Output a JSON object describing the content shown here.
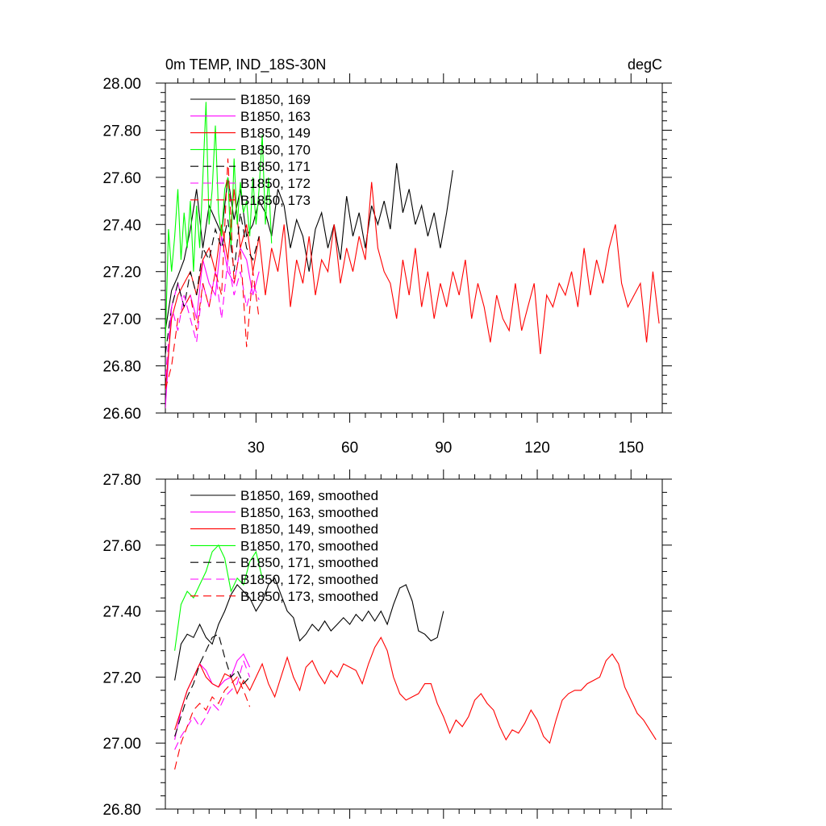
{
  "chart_data": [
    {
      "type": "line",
      "title": "0m TEMP, IND_18S-30N",
      "units": "degC",
      "xlim": [
        1,
        160
      ],
      "ylim": [
        26.6,
        28.0
      ],
      "xticks": [
        30,
        60,
        90,
        120,
        150
      ],
      "ytick_labels": [
        "26.60",
        "26.80",
        "27.00",
        "27.20",
        "27.40",
        "27.60",
        "27.80",
        "28.00"
      ],
      "legend_position": "top-left",
      "series": [
        {
          "name": "B1850, 169",
          "color": "#000000",
          "dash": "solid",
          "x": [
            1,
            3,
            5,
            7,
            9,
            11,
            13,
            15,
            17,
            19,
            21,
            23,
            25,
            27,
            29,
            31,
            33,
            35,
            37,
            39,
            41,
            43,
            45,
            47,
            49,
            51,
            53,
            55,
            57,
            59,
            61,
            63,
            65,
            67,
            69,
            71,
            73,
            75,
            77,
            79,
            81,
            83,
            85,
            87,
            89,
            91,
            93
          ],
          "y": [
            26.95,
            27.12,
            27.18,
            27.25,
            27.38,
            27.55,
            27.3,
            27.48,
            27.42,
            27.36,
            27.6,
            27.42,
            27.55,
            27.35,
            27.4,
            27.5,
            27.45,
            27.35,
            27.55,
            27.48,
            27.3,
            27.42,
            27.35,
            27.2,
            27.38,
            27.45,
            27.3,
            27.4,
            27.25,
            27.52,
            27.35,
            27.45,
            27.3,
            27.48,
            27.4,
            27.5,
            27.38,
            27.66,
            27.45,
            27.55,
            27.4,
            27.48,
            27.35,
            27.45,
            27.3,
            27.45,
            27.63
          ]
        },
        {
          "name": "B1850, 163",
          "color": "#ff00ff",
          "dash": "solid",
          "x": [
            1,
            3,
            5,
            7,
            9,
            11,
            13,
            15,
            17,
            19,
            21,
            23,
            25,
            27,
            29,
            31
          ],
          "y": [
            26.62,
            27.05,
            27.15,
            27.05,
            27.1,
            27.0,
            27.25,
            27.15,
            27.1,
            27.35,
            27.2,
            27.15,
            27.3,
            27.25,
            27.1,
            27.2
          ]
        },
        {
          "name": "B1850, 149",
          "color": "#ff0000",
          "dash": "solid",
          "x": [
            1,
            3,
            5,
            7,
            9,
            11,
            13,
            15,
            17,
            19,
            21,
            23,
            25,
            27,
            29,
            31,
            33,
            35,
            37,
            39,
            41,
            43,
            45,
            47,
            49,
            51,
            53,
            55,
            57,
            59,
            61,
            63,
            65,
            67,
            69,
            71,
            73,
            75,
            77,
            79,
            81,
            83,
            85,
            87,
            89,
            91,
            93,
            95,
            97,
            99,
            101,
            103,
            105,
            107,
            109,
            111,
            113,
            115,
            117,
            119,
            121,
            123,
            125,
            127,
            129,
            131,
            133,
            135,
            137,
            139,
            141,
            143,
            145,
            147,
            149,
            151,
            153,
            155,
            157,
            159
          ],
          "y": [
            26.7,
            27.0,
            27.1,
            27.15,
            27.2,
            27.1,
            27.25,
            27.3,
            27.2,
            27.4,
            27.25,
            27.55,
            27.3,
            27.4,
            27.2,
            27.35,
            27.1,
            27.3,
            27.2,
            27.4,
            27.05,
            27.25,
            27.15,
            27.35,
            27.1,
            27.25,
            27.2,
            27.4,
            27.15,
            27.3,
            27.2,
            27.35,
            27.25,
            27.58,
            27.3,
            27.2,
            27.15,
            27.0,
            27.25,
            27.1,
            27.3,
            27.05,
            27.2,
            27.0,
            27.15,
            27.05,
            27.2,
            27.1,
            27.25,
            27.0,
            27.15,
            27.05,
            26.9,
            27.1,
            27.0,
            26.95,
            27.15,
            26.95,
            27.05,
            27.15,
            26.85,
            27.1,
            27.05,
            27.15,
            27.1,
            27.2,
            27.05,
            27.3,
            27.1,
            27.25,
            27.15,
            27.3,
            27.4,
            27.15,
            27.05,
            27.1,
            27.15,
            26.9,
            27.2,
            26.98
          ]
        },
        {
          "name": "B1850, 170",
          "color": "#00ff00",
          "dash": "solid",
          "x": [
            1,
            2,
            3,
            4,
            5,
            6,
            7,
            8,
            9,
            10,
            11,
            12,
            13,
            14,
            15,
            16,
            17,
            18,
            19,
            20,
            21,
            22,
            23,
            24,
            25,
            26,
            27,
            28,
            29,
            30,
            31,
            32,
            33,
            34,
            35
          ],
          "y": [
            26.9,
            27.38,
            27.2,
            27.35,
            27.55,
            27.25,
            27.45,
            27.3,
            27.5,
            27.2,
            27.48,
            27.3,
            27.6,
            27.92,
            27.4,
            27.55,
            27.82,
            27.45,
            27.35,
            27.55,
            27.6,
            27.3,
            27.68,
            27.4,
            27.58,
            27.45,
            27.5,
            27.35,
            27.6,
            27.4,
            27.55,
            27.78,
            27.4,
            27.6,
            27.32
          ]
        },
        {
          "name": "B1850, 171",
          "color": "#000000",
          "dash": "dashed",
          "x": [
            1,
            3,
            5,
            7,
            9,
            11,
            13,
            15,
            17,
            19,
            21,
            23,
            25,
            27,
            29,
            31
          ],
          "y": [
            26.85,
            27.05,
            27.15,
            27.05,
            27.2,
            27.1,
            27.3,
            27.25,
            27.38,
            27.3,
            27.42,
            27.2,
            27.45,
            27.3,
            27.25,
            27.35
          ]
        },
        {
          "name": "B1850, 172",
          "color": "#ff00ff",
          "dash": "dashed",
          "x": [
            1,
            3,
            5,
            7,
            9,
            11,
            13,
            15,
            17,
            19,
            21,
            23,
            25,
            27,
            29,
            31
          ],
          "y": [
            26.75,
            27.05,
            26.95,
            27.1,
            27.0,
            26.9,
            27.15,
            27.05,
            27.2,
            27.0,
            27.25,
            27.1,
            27.2,
            27.05,
            27.15,
            27.08
          ]
        },
        {
          "name": "B1850, 173",
          "color": "#ff0000",
          "dash": "dashed",
          "x": [
            1,
            3,
            5,
            7,
            9,
            11,
            13,
            15,
            17,
            19,
            21,
            23,
            25,
            27,
            29,
            31
          ],
          "y": [
            26.7,
            26.8,
            27.0,
            27.05,
            27.1,
            26.95,
            27.15,
            27.05,
            27.2,
            27.1,
            27.68,
            27.15,
            27.3,
            26.88,
            27.2,
            27.0
          ]
        }
      ]
    },
    {
      "type": "line",
      "xlim": [
        1,
        160
      ],
      "ylim": [
        26.8,
        27.8
      ],
      "xticks": [
        30,
        60,
        90,
        120,
        150
      ],
      "ytick_labels": [
        "26.80",
        "27.00",
        "27.20",
        "27.40",
        "27.60",
        "27.80"
      ],
      "legend_position": "top-left",
      "series": [
        {
          "name": "B1850, 169, smoothed",
          "color": "#000000",
          "dash": "solid",
          "x": [
            4,
            6,
            8,
            10,
            12,
            14,
            16,
            18,
            20,
            22,
            24,
            26,
            28,
            30,
            32,
            34,
            36,
            38,
            40,
            42,
            44,
            46,
            48,
            50,
            52,
            54,
            56,
            58,
            60,
            62,
            64,
            66,
            68,
            70,
            72,
            74,
            76,
            78,
            80,
            82,
            84,
            86,
            88,
            90
          ],
          "y": [
            27.19,
            27.3,
            27.33,
            27.32,
            27.36,
            27.32,
            27.3,
            27.36,
            27.4,
            27.45,
            27.48,
            27.46,
            27.44,
            27.4,
            27.43,
            27.48,
            27.5,
            27.45,
            27.4,
            27.38,
            27.31,
            27.33,
            27.36,
            27.34,
            27.37,
            27.34,
            27.36,
            27.38,
            27.36,
            27.39,
            27.37,
            27.4,
            27.37,
            27.4,
            27.36,
            27.42,
            27.47,
            27.48,
            27.43,
            27.34,
            27.33,
            27.31,
            27.32,
            27.4
          ]
        },
        {
          "name": "B1850, 163, smoothed",
          "color": "#ff00ff",
          "dash": "solid",
          "x": [
            4,
            6,
            8,
            10,
            12,
            14,
            16,
            18,
            20,
            22,
            24,
            26,
            28
          ],
          "y": [
            27.01,
            27.1,
            27.16,
            27.2,
            27.24,
            27.22,
            27.18,
            27.17,
            27.19,
            27.2,
            27.25,
            27.27,
            27.23
          ]
        },
        {
          "name": "B1850, 149, smoothed",
          "color": "#ff0000",
          "dash": "solid",
          "x": [
            4,
            6,
            8,
            10,
            12,
            14,
            16,
            18,
            20,
            22,
            24,
            26,
            28,
            30,
            32,
            34,
            36,
            38,
            40,
            42,
            44,
            46,
            48,
            50,
            52,
            54,
            56,
            58,
            60,
            62,
            64,
            66,
            68,
            70,
            72,
            74,
            76,
            78,
            80,
            82,
            84,
            86,
            88,
            90,
            92,
            94,
            96,
            98,
            100,
            102,
            104,
            106,
            108,
            110,
            112,
            114,
            116,
            118,
            120,
            122,
            124,
            126,
            128,
            130,
            132,
            134,
            136,
            138,
            140,
            142,
            144,
            146,
            148,
            150,
            152,
            154,
            156,
            158
          ],
          "y": [
            27.04,
            27.1,
            27.16,
            27.2,
            27.24,
            27.2,
            27.18,
            27.17,
            27.21,
            27.2,
            27.15,
            27.19,
            27.16,
            27.2,
            27.24,
            27.18,
            27.14,
            27.2,
            27.26,
            27.2,
            27.16,
            27.23,
            27.25,
            27.21,
            27.18,
            27.22,
            27.2,
            27.24,
            27.23,
            27.22,
            27.18,
            27.24,
            27.29,
            27.32,
            27.28,
            27.2,
            27.15,
            27.13,
            27.14,
            27.15,
            27.18,
            27.18,
            27.12,
            27.08,
            27.03,
            27.07,
            27.05,
            27.08,
            27.13,
            27.15,
            27.12,
            27.1,
            27.05,
            27.01,
            27.04,
            27.03,
            27.06,
            27.1,
            27.07,
            27.02,
            27.0,
            27.07,
            27.13,
            27.15,
            27.16,
            27.16,
            27.18,
            27.19,
            27.2,
            27.25,
            27.27,
            27.24,
            27.17,
            27.13,
            27.09,
            27.07,
            27.04,
            27.01
          ]
        },
        {
          "name": "B1850, 170, smoothed",
          "color": "#00ff00",
          "dash": "solid",
          "x": [
            4,
            6,
            8,
            10,
            12,
            14,
            16,
            18,
            20,
            22,
            24,
            26,
            28,
            30,
            32
          ],
          "y": [
            27.28,
            27.42,
            27.46,
            27.44,
            27.48,
            27.52,
            27.58,
            27.6,
            27.56,
            27.46,
            27.5,
            27.48,
            27.55,
            27.58,
            27.5
          ]
        },
        {
          "name": "B1850, 171, smoothed",
          "color": "#000000",
          "dash": "dashed",
          "x": [
            4,
            6,
            8,
            10,
            12,
            14,
            16,
            18,
            20,
            22,
            24,
            26,
            28
          ],
          "y": [
            27.02,
            27.08,
            27.14,
            27.18,
            27.24,
            27.28,
            27.32,
            27.33,
            27.26,
            27.2,
            27.22,
            27.18,
            27.2
          ]
        },
        {
          "name": "B1850, 172, smoothed",
          "color": "#ff00ff",
          "dash": "dashed",
          "x": [
            4,
            6,
            8,
            10,
            12,
            14,
            16,
            18,
            20,
            22,
            24,
            26,
            28
          ],
          "y": [
            26.98,
            27.02,
            27.05,
            27.08,
            27.05,
            27.08,
            27.12,
            27.1,
            27.14,
            27.16,
            27.18,
            27.25,
            27.2
          ]
        },
        {
          "name": "B1850, 173, smoothed",
          "color": "#ff0000",
          "dash": "dashed",
          "x": [
            4,
            6,
            8,
            10,
            12,
            14,
            16,
            18,
            20,
            22,
            24,
            26,
            28
          ],
          "y": [
            26.92,
            27.0,
            27.05,
            27.1,
            27.12,
            27.1,
            27.14,
            27.12,
            27.16,
            27.18,
            27.2,
            27.16,
            27.11
          ]
        }
      ]
    }
  ]
}
